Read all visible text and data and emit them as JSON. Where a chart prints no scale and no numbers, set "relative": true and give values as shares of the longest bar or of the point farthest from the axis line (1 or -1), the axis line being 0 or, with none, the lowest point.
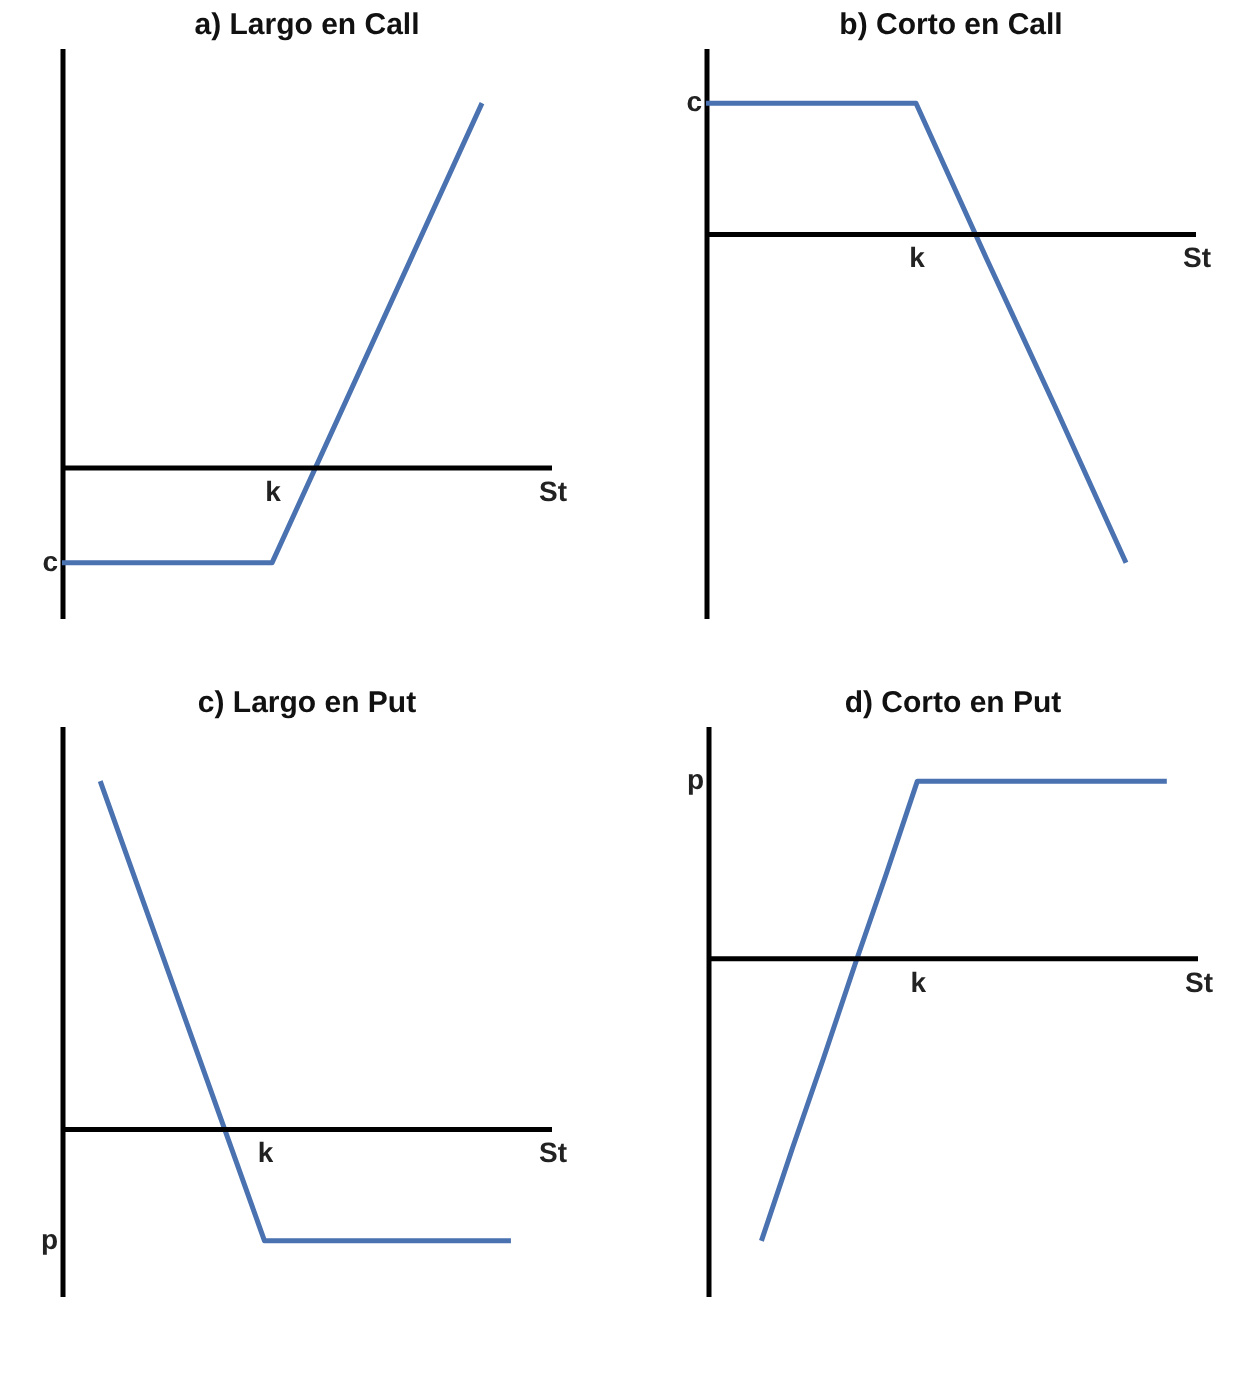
{
  "chart_data": [
    {
      "type": "line",
      "title": "a) Largo en Call",
      "relative": true,
      "categories": [
        null,
        null,
        null,
        "k",
        null,
        null,
        null,
        "St"
      ],
      "color": "#4a72b0",
      "values": [
        -0.26,
        -0.26,
        -0.26,
        -0.26,
        0.16,
        0.58,
        1,
        null
      ],
      "annotations": [
        "c"
      ]
    },
    {
      "type": "line",
      "title": "b) Corto en Call",
      "relative": true,
      "categories": [
        null,
        null,
        null,
        "k",
        null,
        null,
        null,
        "St"
      ],
      "color": "#4a72b0",
      "values": [
        0.4,
        0.4,
        0.4,
        0.4,
        -0.07,
        -0.53,
        -1,
        null
      ],
      "annotations": [
        "c"
      ]
    },
    {
      "type": "line",
      "title": "c) Largo en Put",
      "relative": true,
      "categories": [
        null,
        null,
        null,
        null,
        "k",
        null,
        null,
        null,
        null,
        null,
        null,
        "St"
      ],
      "color": "#4a72b0",
      "values": [
        1,
        0.67,
        0.34,
        0.01,
        -0.32,
        -0.32,
        -0.32,
        -0.32,
        -0.32,
        -0.32,
        -0.32,
        null
      ],
      "annotations": [
        "p"
      ]
    },
    {
      "type": "line",
      "title": "d) Corto en Put",
      "relative": true,
      "categories": [
        null,
        null,
        null,
        null,
        null,
        "k",
        null,
        null,
        null,
        null,
        null,
        null,
        null,
        null,
        "St"
      ],
      "color": "#4a72b0",
      "values": [
        -1,
        -0.67,
        -0.35,
        -0.02,
        0.3,
        0.63,
        0.63,
        0.63,
        0.63,
        0.63,
        0.63,
        0.63,
        0.63,
        0.63,
        null
      ],
      "annotations": [
        "p"
      ]
    }
  ]
}
